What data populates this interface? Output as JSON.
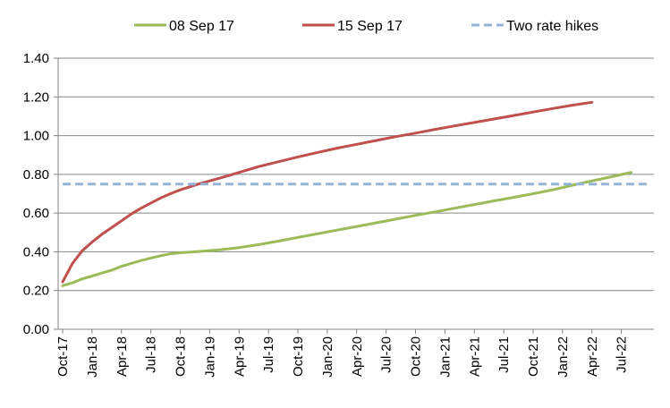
{
  "chart_data": {
    "type": "line",
    "title": "",
    "xlabel": "",
    "ylabel": "",
    "ylim": [
      0,
      1.4
    ],
    "y_ticks": [
      "0.00",
      "0.20",
      "0.40",
      "0.60",
      "0.80",
      "1.00",
      "1.20",
      "1.40"
    ],
    "x_ticks": [
      "Oct-17",
      "Jan-18",
      "Apr-18",
      "Jul-18",
      "Oct-18",
      "Jan-19",
      "Apr-19",
      "Jul-19",
      "Oct-19",
      "Jan-20",
      "Apr-20",
      "Jul-20",
      "Oct-20",
      "Jan-21",
      "Apr-21",
      "Jul-21",
      "Oct-21",
      "Jan-22",
      "Apr-22",
      "Jul-22"
    ],
    "x_range_months": [
      0,
      60
    ],
    "legend_position": "top",
    "series": [
      {
        "name": "08 Sep 17",
        "color": "#9bbb59",
        "style": "solid",
        "points": [
          [
            0,
            0.225
          ],
          [
            1,
            0.24
          ],
          [
            2,
            0.26
          ],
          [
            3,
            0.275
          ],
          [
            4,
            0.29
          ],
          [
            5,
            0.305
          ],
          [
            6,
            0.325
          ],
          [
            7,
            0.34
          ],
          [
            8,
            0.355
          ],
          [
            9,
            0.368
          ],
          [
            10,
            0.38
          ],
          [
            11,
            0.39
          ],
          [
            12,
            0.395
          ],
          [
            14,
            0.402
          ],
          [
            16,
            0.41
          ],
          [
            18,
            0.422
          ],
          [
            20,
            0.437
          ],
          [
            22,
            0.455
          ],
          [
            24,
            0.474
          ],
          [
            26,
            0.493
          ],
          [
            28,
            0.512
          ],
          [
            30,
            0.531
          ],
          [
            32,
            0.55
          ],
          [
            34,
            0.569
          ],
          [
            36,
            0.588
          ],
          [
            38,
            0.606
          ],
          [
            40,
            0.625
          ],
          [
            42,
            0.644
          ],
          [
            44,
            0.663
          ],
          [
            46,
            0.681
          ],
          [
            48,
            0.7
          ],
          [
            50,
            0.72
          ],
          [
            52,
            0.744
          ],
          [
            54,
            0.766
          ],
          [
            56,
            0.788
          ],
          [
            58,
            0.81
          ]
        ]
      },
      {
        "name": "15 Sep 17",
        "color": "#c0504d",
        "style": "solid",
        "points": [
          [
            0,
            0.245
          ],
          [
            1,
            0.34
          ],
          [
            2,
            0.405
          ],
          [
            3,
            0.45
          ],
          [
            4,
            0.49
          ],
          [
            5,
            0.525
          ],
          [
            6,
            0.56
          ],
          [
            7,
            0.595
          ],
          [
            8,
            0.625
          ],
          [
            9,
            0.652
          ],
          [
            10,
            0.678
          ],
          [
            11,
            0.7
          ],
          [
            12,
            0.72
          ],
          [
            14,
            0.752
          ],
          [
            16,
            0.78
          ],
          [
            18,
            0.81
          ],
          [
            20,
            0.84
          ],
          [
            22,
            0.865
          ],
          [
            24,
            0.89
          ],
          [
            26,
            0.913
          ],
          [
            28,
            0.935
          ],
          [
            30,
            0.955
          ],
          [
            32,
            0.975
          ],
          [
            34,
            0.995
          ],
          [
            36,
            1.013
          ],
          [
            38,
            1.032
          ],
          [
            40,
            1.05
          ],
          [
            42,
            1.068
          ],
          [
            44,
            1.086
          ],
          [
            46,
            1.104
          ],
          [
            48,
            1.122
          ],
          [
            50,
            1.14
          ],
          [
            52,
            1.157
          ],
          [
            54,
            1.172
          ]
        ]
      },
      {
        "name": "Two rate hikes",
        "color": "#95b3d7",
        "style": "dashed",
        "points": [
          [
            0,
            0.75
          ],
          [
            60,
            0.75
          ]
        ]
      }
    ]
  }
}
